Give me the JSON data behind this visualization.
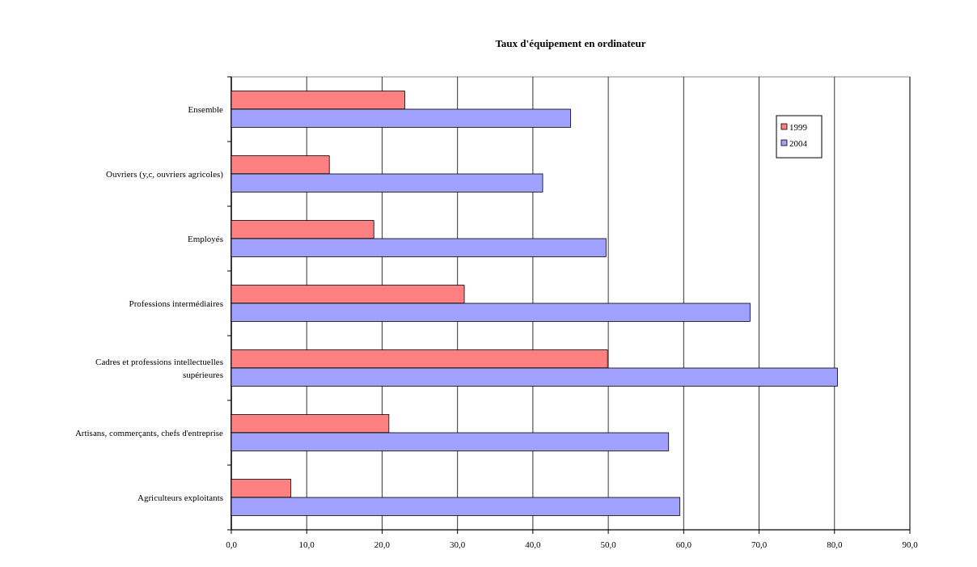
{
  "chart_data": {
    "type": "bar",
    "orientation": "horizontal",
    "title": "Taux d'équipement en ordinateur",
    "categories": [
      "Ensemble",
      "Ouvriers (y,c, ouvriers agricoles)",
      "Employés",
      "Professions intermédiaires",
      "Cadres et professions intellectuelles supérieures",
      "Artisans, commerçants, chefs d'entreprise",
      "Agriculteurs exploitants"
    ],
    "series": [
      {
        "name": "1999",
        "color": "#ff8080",
        "values": [
          23.0,
          13.0,
          18.9,
          30.9,
          49.9,
          20.9,
          7.9
        ]
      },
      {
        "name": "2004",
        "color": "#a0a0ff",
        "values": [
          45.0,
          41.3,
          49.7,
          68.8,
          80.4,
          58.0,
          59.5
        ]
      }
    ],
    "xlim": [
      0,
      90
    ],
    "xticks": [
      {
        "value": 0,
        "label": "0,0"
      },
      {
        "value": 10,
        "label": "10,0"
      },
      {
        "value": 20,
        "label": "20,0"
      },
      {
        "value": 30,
        "label": "30,0"
      },
      {
        "value": 40,
        "label": "40,0"
      },
      {
        "value": 50,
        "label": "50,0"
      },
      {
        "value": 60,
        "label": "60,0"
      },
      {
        "value": 70,
        "label": "70,0"
      },
      {
        "value": 80,
        "label": "80,0"
      },
      {
        "value": 90,
        "label": "90,0"
      }
    ],
    "grid": "x",
    "legend": "top right"
  }
}
